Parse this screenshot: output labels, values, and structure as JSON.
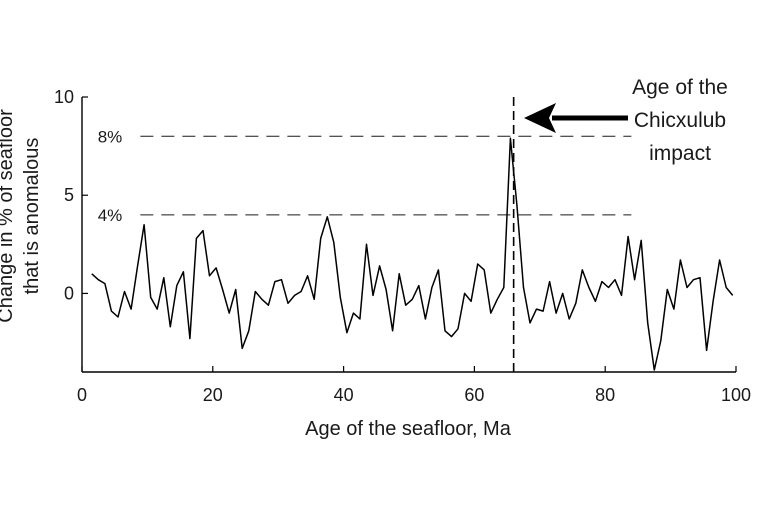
{
  "chart_data": {
    "type": "line",
    "xlabel": "Age of the seafloor, Ma",
    "ylabel_lines": [
      "Change in % of seafloor",
      "that is anomalous"
    ],
    "xlim": [
      0,
      100
    ],
    "ylim": [
      -4,
      10
    ],
    "xticks": [
      0,
      20,
      40,
      60,
      80,
      100
    ],
    "yticks": [
      0,
      5,
      10
    ],
    "grid": false,
    "series": [
      {
        "x": [
          1.5,
          2.5,
          3.5,
          4.5,
          5.5,
          6.5,
          7.5,
          8.5,
          9.5,
          10.5,
          11.5,
          12.5,
          13.5,
          14.5,
          15.5,
          16.5,
          17.5,
          18.5,
          19.5,
          20.5,
          21.5,
          22.5,
          23.5,
          24.5,
          25.5,
          26.5,
          27.5,
          28.5,
          29.5,
          30.5,
          31.5,
          32.5,
          33.5,
          34.5,
          35.5,
          36.5,
          37.5,
          38.5,
          39.5,
          40.5,
          41.5,
          42.5,
          43.5,
          44.5,
          45.5,
          46.5,
          47.5,
          48.5,
          49.5,
          50.5,
          51.5,
          52.5,
          53.5,
          54.5,
          55.5,
          56.5,
          57.5,
          58.5,
          59.5,
          60.5,
          61.5,
          62.5,
          63.5,
          64.5,
          65.5,
          66.5,
          67.5,
          68.5,
          69.5,
          70.5,
          71.5,
          72.5,
          73.5,
          74.5,
          75.5,
          76.5,
          77.5,
          78.5,
          79.5,
          80.5,
          81.5,
          82.5,
          83.5,
          84.5,
          85.5,
          86.5,
          87.5,
          88.5,
          89.5,
          90.5,
          91.5,
          92.5,
          93.5,
          94.5,
          95.5,
          96.5,
          97.5,
          98.5,
          99.5
        ],
        "y": [
          1.0,
          0.7,
          0.5,
          -0.9,
          -1.2,
          0.1,
          -0.8,
          1.4,
          3.5,
          -0.2,
          -0.8,
          0.8,
          -1.7,
          0.4,
          1.1,
          -2.3,
          2.8,
          3.2,
          0.9,
          1.3,
          0.2,
          -1.0,
          0.2,
          -2.8,
          -1.9,
          0.1,
          -0.3,
          -0.6,
          0.6,
          0.7,
          -0.5,
          -0.1,
          0.1,
          0.9,
          -0.3,
          2.8,
          3.9,
          2.6,
          -0.2,
          -2.0,
          -1.0,
          -1.3,
          2.5,
          -0.1,
          1.4,
          0.2,
          -1.9,
          1.0,
          -0.6,
          -0.3,
          0.4,
          -1.3,
          0.3,
          1.2,
          -1.9,
          -2.2,
          -1.8,
          0.0,
          -0.4,
          1.5,
          1.2,
          -1.0,
          -0.3,
          0.3,
          7.9,
          4.5,
          0.3,
          -1.5,
          -0.8,
          -0.9,
          0.6,
          -1.0,
          0.0,
          -1.3,
          -0.5,
          1.2,
          0.3,
          -0.4,
          0.6,
          0.3,
          0.7,
          -0.1,
          2.9,
          0.7,
          2.7,
          -1.5,
          -3.9,
          -2.4,
          0.2,
          -0.8,
          1.7,
          0.3,
          0.7,
          0.8,
          -2.9,
          -0.4,
          1.7,
          0.3,
          -0.1
        ]
      }
    ],
    "reference_lines": [
      {
        "y": 8,
        "label": "8%",
        "x_end": 84
      },
      {
        "y": 4,
        "label": "4%",
        "x_end": 84
      }
    ],
    "vertical_marker": {
      "x": 66
    },
    "annotation": {
      "lines": [
        "Age of the",
        "Chicxulub",
        "impact"
      ]
    }
  }
}
